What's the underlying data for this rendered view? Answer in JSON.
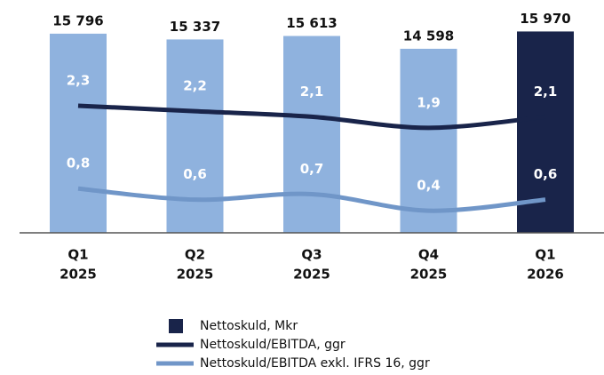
{
  "chart_data": {
    "type": "bar",
    "categories": [
      [
        "Q1",
        "2025"
      ],
      [
        "Q2",
        "2025"
      ],
      [
        "Q3",
        "2025"
      ],
      [
        "Q4",
        "2025"
      ],
      [
        "Q1",
        "2026"
      ]
    ],
    "ylim": [
      0,
      16000
    ],
    "y2lim": [
      0,
      3.65
    ],
    "series": [
      {
        "name": "Nettoskuld, Mkr",
        "type": "bar",
        "colors": [
          "#8fb2de",
          "#8fb2de",
          "#8fb2de",
          "#8fb2de",
          "#19244a"
        ],
        "color": "#19244a",
        "values": [
          15796,
          15337,
          15613,
          14598,
          15970
        ],
        "value_labels": [
          "15 796",
          "15 337",
          "15 613",
          "14 598",
          "15 970"
        ]
      },
      {
        "name": "Nettoskuld/EBITDA, ggr",
        "type": "line",
        "axis": "y2",
        "color": "#19244a",
        "values": [
          2.3,
          2.2,
          2.1,
          1.9,
          2.1
        ],
        "value_labels": [
          "2,3",
          "2,2",
          "2,1",
          "1,9",
          "2,1"
        ]
      },
      {
        "name": "Nettoskuld/EBITDA exkl. IFRS 16, ggr",
        "type": "line",
        "axis": "y2",
        "color": "#7096c8",
        "values": [
          0.8,
          0.6,
          0.7,
          0.4,
          0.6
        ],
        "value_labels": [
          "0,8",
          "0,6",
          "0,7",
          "0,4",
          "0,6"
        ]
      }
    ]
  }
}
